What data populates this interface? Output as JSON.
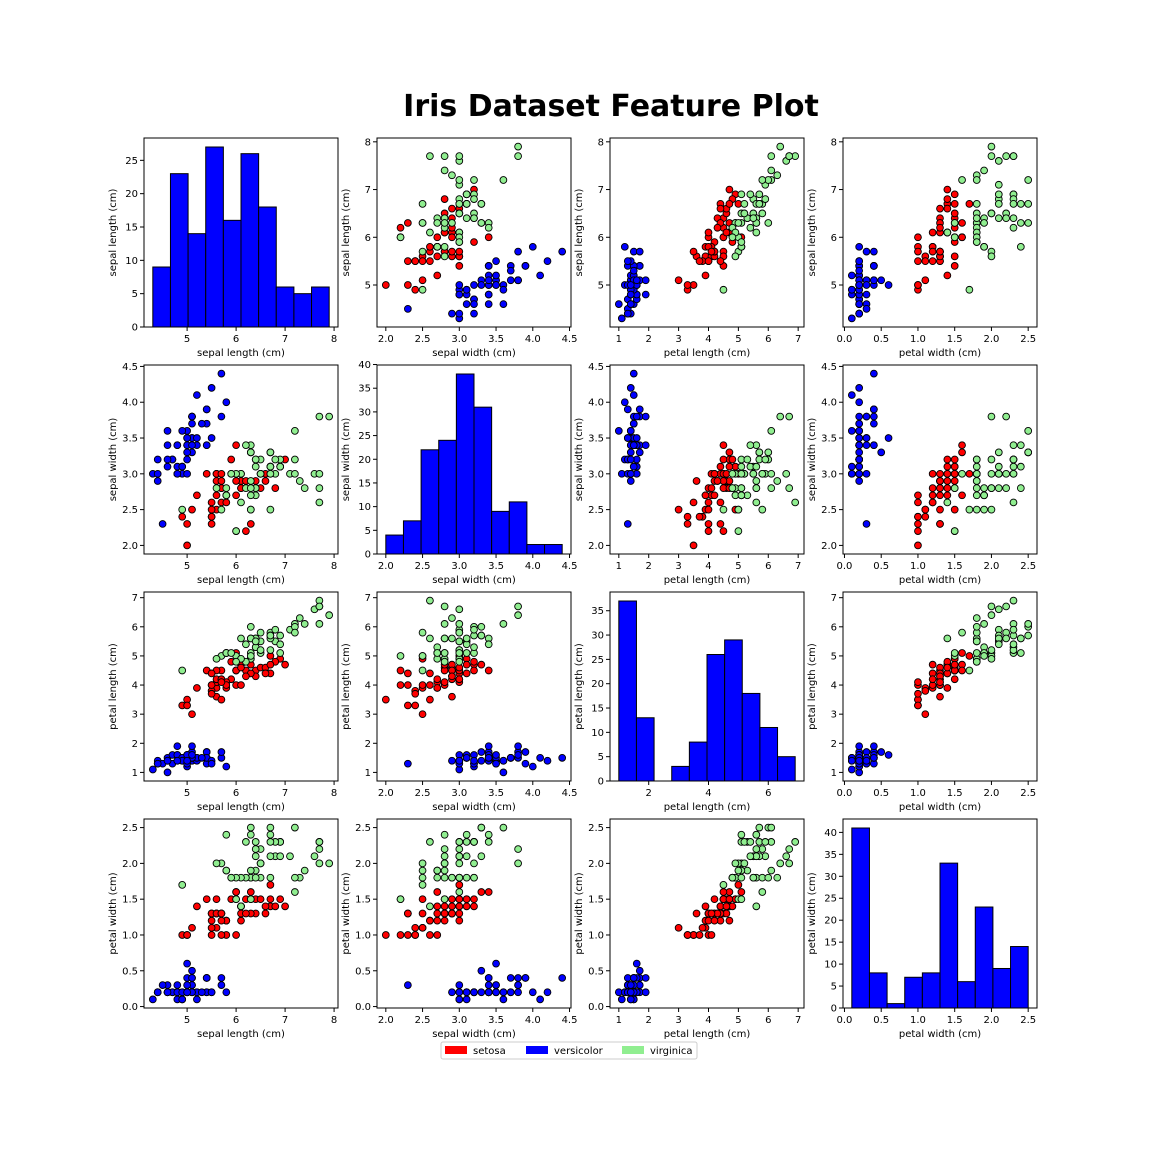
{
  "title": "Iris Dataset Feature Plot",
  "colors": {
    "setosa": "#ff0000",
    "versicolor": "#0000ff",
    "virginica": "#90ee90",
    "hist": "#0000ff",
    "edge": "#000000"
  },
  "legend": {
    "placement": "bottom-center",
    "entries": [
      {
        "name": "setosa",
        "color": "#ff0000"
      },
      {
        "name": "versicolor",
        "color": "#0000ff"
      },
      {
        "name": "virginica",
        "color": "#90ee90"
      }
    ]
  },
  "chart_data": {
    "type": "scatter",
    "features": [
      "sepal length (cm)",
      "sepal width (cm)",
      "petal length (cm)",
      "petal width (cm)"
    ],
    "ranges": [
      [
        4.12,
        8.08
      ],
      [
        1.88,
        4.52
      ],
      [
        0.705,
        7.195
      ],
      [
        -0.02,
        2.62
      ]
    ],
    "ticks": [
      [
        5,
        6,
        7,
        8
      ],
      [
        2.0,
        2.5,
        3.0,
        3.5,
        4.0,
        4.5
      ],
      [
        2,
        4,
        6
      ],
      [
        0.0,
        0.5,
        1.0,
        1.5,
        2.0,
        2.5
      ]
    ],
    "scatter_ticks": [
      [
        5,
        6,
        7,
        8
      ],
      [
        2.0,
        2.5,
        3.0,
        3.5,
        4.0,
        4.5
      ],
      [
        1,
        2,
        3,
        4,
        5,
        6,
        7
      ],
      [
        0.0,
        0.5,
        1.0,
        1.5,
        2.0,
        2.5
      ]
    ],
    "histograms": [
      {
        "feature": "sepal length (cm)",
        "range": [
          4.3,
          7.9
        ],
        "counts": [
          9,
          23,
          14,
          27,
          16,
          26,
          18,
          6,
          5,
          6
        ],
        "ylim": [
          0,
          28.35
        ],
        "yticks": [
          0,
          5,
          10,
          15,
          20,
          25
        ]
      },
      {
        "feature": "sepal width (cm)",
        "range": [
          2.0,
          4.4
        ],
        "counts": [
          4,
          7,
          22,
          24,
          38,
          31,
          9,
          11,
          2,
          2
        ],
        "ylim": [
          0,
          39.9
        ],
        "yticks": [
          0,
          5,
          10,
          15,
          20,
          25,
          30,
          35,
          40
        ]
      },
      {
        "feature": "petal length (cm)",
        "range": [
          1.0,
          6.9
        ],
        "counts": [
          37,
          13,
          0,
          3,
          8,
          26,
          29,
          18,
          11,
          5
        ],
        "ylim": [
          0,
          38.85
        ],
        "yticks": [
          0,
          5,
          10,
          15,
          20,
          25,
          30,
          35
        ]
      },
      {
        "feature": "petal width (cm)",
        "range": [
          0.1,
          2.5
        ],
        "counts": [
          41,
          8,
          1,
          7,
          8,
          33,
          6,
          23,
          9,
          14
        ],
        "ylim": [
          0,
          43.05
        ],
        "yticks": [
          0,
          5,
          10,
          15,
          20,
          25,
          30,
          35,
          40
        ]
      }
    ],
    "series": [
      {
        "name": "versicolor",
        "color": "#0000ff",
        "points": [
          [
            5.1,
            3.5,
            1.4,
            0.2
          ],
          [
            4.9,
            3.0,
            1.4,
            0.2
          ],
          [
            4.7,
            3.2,
            1.3,
            0.2
          ],
          [
            4.6,
            3.1,
            1.5,
            0.2
          ],
          [
            5.0,
            3.6,
            1.4,
            0.2
          ],
          [
            5.4,
            3.9,
            1.7,
            0.4
          ],
          [
            4.6,
            3.4,
            1.4,
            0.3
          ],
          [
            5.0,
            3.4,
            1.5,
            0.2
          ],
          [
            4.4,
            2.9,
            1.4,
            0.2
          ],
          [
            4.9,
            3.1,
            1.5,
            0.1
          ],
          [
            5.4,
            3.7,
            1.5,
            0.2
          ],
          [
            4.8,
            3.4,
            1.6,
            0.2
          ],
          [
            4.8,
            3.0,
            1.4,
            0.1
          ],
          [
            4.3,
            3.0,
            1.1,
            0.1
          ],
          [
            5.8,
            4.0,
            1.2,
            0.2
          ],
          [
            5.7,
            4.4,
            1.5,
            0.4
          ],
          [
            5.4,
            3.9,
            1.3,
            0.4
          ],
          [
            5.1,
            3.5,
            1.4,
            0.3
          ],
          [
            5.7,
            3.8,
            1.7,
            0.3
          ],
          [
            5.1,
            3.8,
            1.5,
            0.3
          ],
          [
            5.4,
            3.4,
            1.7,
            0.2
          ],
          [
            5.1,
            3.7,
            1.5,
            0.4
          ],
          [
            4.6,
            3.6,
            1.0,
            0.2
          ],
          [
            5.1,
            3.3,
            1.7,
            0.5
          ],
          [
            4.8,
            3.4,
            1.9,
            0.2
          ],
          [
            5.0,
            3.0,
            1.6,
            0.2
          ],
          [
            5.0,
            3.4,
            1.6,
            0.4
          ],
          [
            5.2,
            3.5,
            1.5,
            0.2
          ],
          [
            5.2,
            3.4,
            1.4,
            0.2
          ],
          [
            4.7,
            3.2,
            1.6,
            0.2
          ],
          [
            4.8,
            3.1,
            1.6,
            0.2
          ],
          [
            5.4,
            3.4,
            1.5,
            0.4
          ],
          [
            5.2,
            4.1,
            1.5,
            0.1
          ],
          [
            5.5,
            4.2,
            1.4,
            0.2
          ],
          [
            4.9,
            3.1,
            1.5,
            0.2
          ],
          [
            5.0,
            3.2,
            1.2,
            0.2
          ],
          [
            5.5,
            3.5,
            1.3,
            0.2
          ],
          [
            4.9,
            3.6,
            1.4,
            0.1
          ],
          [
            4.4,
            3.0,
            1.3,
            0.2
          ],
          [
            5.1,
            3.4,
            1.5,
            0.2
          ],
          [
            5.0,
            3.5,
            1.3,
            0.3
          ],
          [
            4.5,
            2.3,
            1.3,
            0.3
          ],
          [
            4.4,
            3.2,
            1.3,
            0.2
          ],
          [
            5.0,
            3.5,
            1.6,
            0.6
          ],
          [
            5.1,
            3.8,
            1.9,
            0.4
          ],
          [
            4.8,
            3.0,
            1.4,
            0.3
          ],
          [
            5.1,
            3.8,
            1.6,
            0.2
          ],
          [
            4.6,
            3.2,
            1.4,
            0.2
          ],
          [
            5.3,
            3.7,
            1.5,
            0.2
          ],
          [
            5.0,
            3.3,
            1.4,
            0.2
          ]
        ]
      },
      {
        "name": "setosa",
        "color": "#ff0000",
        "points": [
          [
            7.0,
            3.2,
            4.7,
            1.4
          ],
          [
            6.4,
            3.2,
            4.5,
            1.5
          ],
          [
            6.9,
            3.1,
            4.9,
            1.5
          ],
          [
            5.5,
            2.3,
            4.0,
            1.3
          ],
          [
            6.5,
            2.8,
            4.6,
            1.5
          ],
          [
            5.7,
            2.8,
            4.5,
            1.3
          ],
          [
            6.3,
            3.3,
            4.7,
            1.6
          ],
          [
            4.9,
            2.4,
            3.3,
            1.0
          ],
          [
            6.6,
            2.9,
            4.6,
            1.3
          ],
          [
            5.2,
            2.7,
            3.9,
            1.4
          ],
          [
            5.0,
            2.0,
            3.5,
            1.0
          ],
          [
            5.9,
            3.0,
            4.2,
            1.5
          ],
          [
            6.0,
            2.2,
            4.0,
            1.0
          ],
          [
            6.1,
            2.9,
            4.7,
            1.4
          ],
          [
            5.6,
            2.9,
            3.6,
            1.3
          ],
          [
            6.7,
            3.1,
            4.4,
            1.4
          ],
          [
            5.6,
            3.0,
            4.5,
            1.5
          ],
          [
            5.8,
            2.7,
            4.1,
            1.0
          ],
          [
            6.2,
            2.2,
            4.5,
            1.5
          ],
          [
            5.6,
            2.5,
            3.9,
            1.1
          ],
          [
            5.9,
            3.2,
            4.8,
            1.8
          ],
          [
            6.1,
            2.8,
            4.0,
            1.3
          ],
          [
            6.3,
            2.5,
            4.9,
            1.5
          ],
          [
            6.1,
            2.8,
            4.7,
            1.2
          ],
          [
            6.4,
            2.9,
            4.3,
            1.3
          ],
          [
            6.6,
            3.0,
            4.4,
            1.4
          ],
          [
            6.8,
            2.8,
            4.8,
            1.4
          ],
          [
            6.7,
            3.0,
            5.0,
            1.7
          ],
          [
            6.0,
            2.9,
            4.5,
            1.5
          ],
          [
            5.7,
            2.6,
            3.5,
            1.0
          ],
          [
            5.5,
            2.4,
            3.8,
            1.1
          ],
          [
            5.5,
            2.4,
            3.7,
            1.0
          ],
          [
            5.8,
            2.7,
            3.9,
            1.2
          ],
          [
            6.0,
            2.7,
            5.1,
            1.6
          ],
          [
            5.4,
            3.0,
            4.5,
            1.5
          ],
          [
            6.0,
            3.4,
            4.5,
            1.6
          ],
          [
            6.7,
            3.1,
            4.7,
            1.5
          ],
          [
            6.3,
            2.3,
            4.4,
            1.3
          ],
          [
            5.6,
            3.0,
            4.1,
            1.3
          ],
          [
            5.5,
            2.5,
            4.0,
            1.3
          ],
          [
            5.5,
            2.6,
            4.4,
            1.2
          ],
          [
            6.1,
            3.0,
            4.6,
            1.4
          ],
          [
            5.8,
            2.6,
            4.0,
            1.2
          ],
          [
            5.0,
            2.3,
            3.3,
            1.0
          ],
          [
            5.6,
            2.7,
            4.2,
            1.3
          ],
          [
            5.7,
            3.0,
            4.2,
            1.2
          ],
          [
            5.7,
            2.9,
            4.2,
            1.3
          ],
          [
            6.2,
            2.9,
            4.3,
            1.3
          ],
          [
            5.1,
            2.5,
            3.0,
            1.1
          ],
          [
            5.7,
            2.8,
            4.1,
            1.3
          ]
        ]
      },
      {
        "name": "virginica",
        "color": "#90ee90",
        "points": [
          [
            6.3,
            3.3,
            6.0,
            2.5
          ],
          [
            5.8,
            2.7,
            5.1,
            1.9
          ],
          [
            7.1,
            3.0,
            5.9,
            2.1
          ],
          [
            6.3,
            2.9,
            5.6,
            1.8
          ],
          [
            6.5,
            3.0,
            5.8,
            2.2
          ],
          [
            7.6,
            3.0,
            6.6,
            2.1
          ],
          [
            4.9,
            2.5,
            4.5,
            1.7
          ],
          [
            7.3,
            2.9,
            6.3,
            1.8
          ],
          [
            6.7,
            2.5,
            5.8,
            1.8
          ],
          [
            7.2,
            3.6,
            6.1,
            2.5
          ],
          [
            6.5,
            3.2,
            5.1,
            2.0
          ],
          [
            6.4,
            2.7,
            5.3,
            1.9
          ],
          [
            6.8,
            3.0,
            5.5,
            2.1
          ],
          [
            5.7,
            2.5,
            5.0,
            2.0
          ],
          [
            5.8,
            2.8,
            5.1,
            2.4
          ],
          [
            6.4,
            3.2,
            5.3,
            2.3
          ],
          [
            6.5,
            3.0,
            5.5,
            1.8
          ],
          [
            7.7,
            3.8,
            6.7,
            2.2
          ],
          [
            7.7,
            2.6,
            6.9,
            2.3
          ],
          [
            6.0,
            2.2,
            5.0,
            1.5
          ],
          [
            6.9,
            3.2,
            5.7,
            2.3
          ],
          [
            5.6,
            2.8,
            4.9,
            2.0
          ],
          [
            7.7,
            2.8,
            6.7,
            2.0
          ],
          [
            6.3,
            2.7,
            4.9,
            1.8
          ],
          [
            6.7,
            3.3,
            5.7,
            2.1
          ],
          [
            7.2,
            3.2,
            6.0,
            1.8
          ],
          [
            6.2,
            2.8,
            4.8,
            1.8
          ],
          [
            6.1,
            3.0,
            4.9,
            1.8
          ],
          [
            6.4,
            2.8,
            5.6,
            2.1
          ],
          [
            7.2,
            3.0,
            5.8,
            1.6
          ],
          [
            7.4,
            2.8,
            6.1,
            1.9
          ],
          [
            7.9,
            3.8,
            6.4,
            2.0
          ],
          [
            6.4,
            2.8,
            5.6,
            2.2
          ],
          [
            6.3,
            2.8,
            5.1,
            1.5
          ],
          [
            6.1,
            2.6,
            5.6,
            1.4
          ],
          [
            7.7,
            3.0,
            6.1,
            2.3
          ],
          [
            6.3,
            3.4,
            5.6,
            2.4
          ],
          [
            6.4,
            3.1,
            5.5,
            1.8
          ],
          [
            6.0,
            3.0,
            4.8,
            1.8
          ],
          [
            6.9,
            3.1,
            5.4,
            2.1
          ],
          [
            6.7,
            3.1,
            5.6,
            2.4
          ],
          [
            6.9,
            3.1,
            5.1,
            2.3
          ],
          [
            5.8,
            2.7,
            5.1,
            1.9
          ],
          [
            6.8,
            3.2,
            5.9,
            2.3
          ],
          [
            6.7,
            3.3,
            5.7,
            2.5
          ],
          [
            6.7,
            3.0,
            5.2,
            2.3
          ],
          [
            6.3,
            2.5,
            5.0,
            1.9
          ],
          [
            6.5,
            3.0,
            5.2,
            2.0
          ],
          [
            6.2,
            3.4,
            5.4,
            2.3
          ],
          [
            5.9,
            3.0,
            5.1,
            1.8
          ]
        ]
      }
    ]
  }
}
